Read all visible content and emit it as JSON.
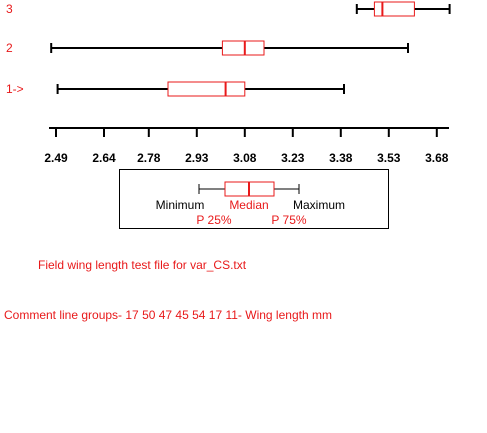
{
  "chart_data": {
    "type": "boxplot",
    "orientation": "horizontal",
    "groups": [
      {
        "label": "1->",
        "min": 2.495,
        "q1": 2.84,
        "median": 3.02,
        "q3": 3.08,
        "max": 3.39
      },
      {
        "label": "2",
        "min": 2.475,
        "q1": 3.01,
        "median": 3.08,
        "q3": 3.14,
        "max": 3.59
      },
      {
        "label": "3",
        "min": 3.43,
        "q1": 3.485,
        "median": 3.51,
        "q3": 3.61,
        "max": 3.72
      }
    ],
    "x_ticks": [
      "2.49",
      "2.64",
      "2.78",
      "2.93",
      "3.08",
      "3.23",
      "3.38",
      "3.53",
      "3.68"
    ],
    "xlim": [
      2.465,
      3.715
    ],
    "legend": {
      "minimum": "Minimum",
      "median": "Median",
      "maximum": "Maximum",
      "p25": "P 25%",
      "p75": "P 75%"
    },
    "colors": {
      "box": "#e8191a",
      "whisker": "#000000",
      "label": "#e8191a"
    }
  },
  "footer": {
    "title": "Field wing length test file for var_CS.txt",
    "comment": "Comment line groups- 17 50 47 45 54 17 11- Wing length mm"
  }
}
